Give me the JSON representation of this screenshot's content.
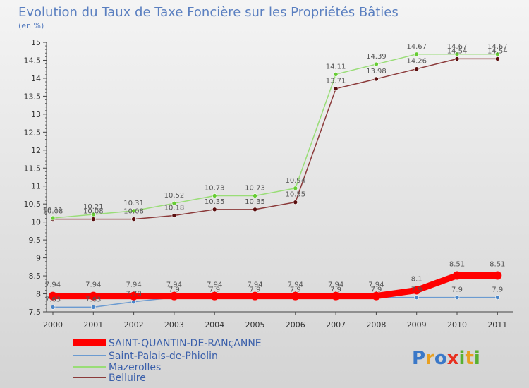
{
  "chart_data": {
    "type": "line",
    "title": "Evolution du Taux de Taxe Foncière sur les Propriétés Bâties",
    "subtitle": "(en %)",
    "x": [
      "2000",
      "2001",
      "2002",
      "2003",
      "2004",
      "2005",
      "2006",
      "2007",
      "2008",
      "2009",
      "2010",
      "2011"
    ],
    "y_ticks": [
      "7.5",
      "8",
      "8.5",
      "9",
      "9.5",
      "10",
      "10.5",
      "11",
      "11.5",
      "12",
      "12.5",
      "13",
      "13.5",
      "14",
      "14.5",
      "15"
    ],
    "ylim": [
      7.5,
      15
    ],
    "grid": false,
    "legend_position": "bottom-left",
    "series": [
      {
        "name": "SAINT-QUANTIN-DE-RANçANNE",
        "color": "#ff0000",
        "marker_color": "#ff0000",
        "values": [
          7.94,
          7.94,
          7.94,
          7.94,
          7.94,
          7.94,
          7.94,
          7.94,
          7.94,
          8.1,
          8.51,
          8.51
        ],
        "labels": [
          "7.94",
          "7.94",
          "7.94",
          "7.94",
          "7.94",
          "7.94",
          "7.94",
          "7.94",
          "7.94",
          "8.1",
          "8.51",
          "8.51"
        ]
      },
      {
        "name": "Saint-Palais-de-Phiolin",
        "color": "#6b9bd1",
        "marker_color": "#4a86c8",
        "values": [
          7.63,
          7.63,
          7.78,
          7.9,
          7.9,
          7.9,
          7.9,
          7.9,
          7.9,
          7.9,
          7.9,
          7.9
        ],
        "labels": [
          "7.63",
          "7.63",
          "7.78",
          "7.9",
          "7.9",
          "7.9",
          "7.9",
          "7.9",
          "7.9",
          "7.9",
          "7.9",
          "7.9"
        ]
      },
      {
        "name": "Mazerolles",
        "color": "#99dd77",
        "marker_color": "#66cc33",
        "values": [
          10.11,
          10.21,
          10.31,
          10.52,
          10.73,
          10.73,
          10.94,
          14.11,
          14.39,
          14.67,
          14.67,
          14.67
        ],
        "labels": [
          "10.11",
          "10.21",
          "10.31",
          "10.52",
          "10.73",
          "10.73",
          "10.94",
          "14.11",
          "14.39",
          "14.67",
          "14.67",
          "14.67"
        ]
      },
      {
        "name": "Belluire",
        "color": "#8b3a3a",
        "marker_color": "#5a0f0f",
        "values": [
          10.08,
          10.08,
          10.08,
          10.18,
          10.35,
          10.35,
          10.55,
          13.71,
          13.98,
          14.26,
          14.54,
          14.54
        ],
        "labels": [
          "10.08",
          "10.08",
          "10.08",
          "10.18",
          "10.35",
          "10.35",
          "10.55",
          "13.71",
          "13.98",
          "14.26",
          "14.54",
          "14.54"
        ]
      }
    ]
  },
  "logo": {
    "text": "Proxiti",
    "letters": [
      "P",
      "r",
      "o",
      "x",
      "i",
      "t",
      "i"
    ],
    "colors": [
      "#3a78c8",
      "#e8a020",
      "#3a78c8",
      "#e83020",
      "#58b030",
      "#e8a020",
      "#58b030"
    ]
  }
}
